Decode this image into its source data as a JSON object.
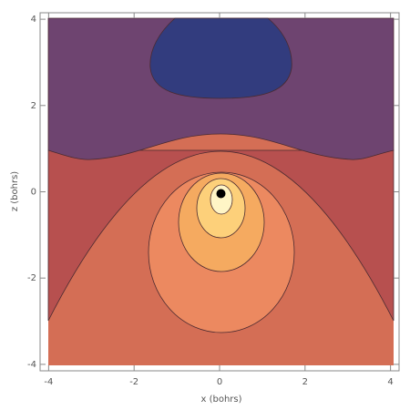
{
  "chart_data": {
    "type": "contour",
    "xlabel": "x (bohrs)",
    "ylabel": "z (bohrs)",
    "xlim": [
      -4.2,
      4.2
    ],
    "ylim": [
      -4.15,
      4.15
    ],
    "xticks": [
      -4,
      -2,
      0,
      2,
      4
    ],
    "yticks": [
      -4,
      -2,
      0,
      2,
      4
    ]
  }
}
